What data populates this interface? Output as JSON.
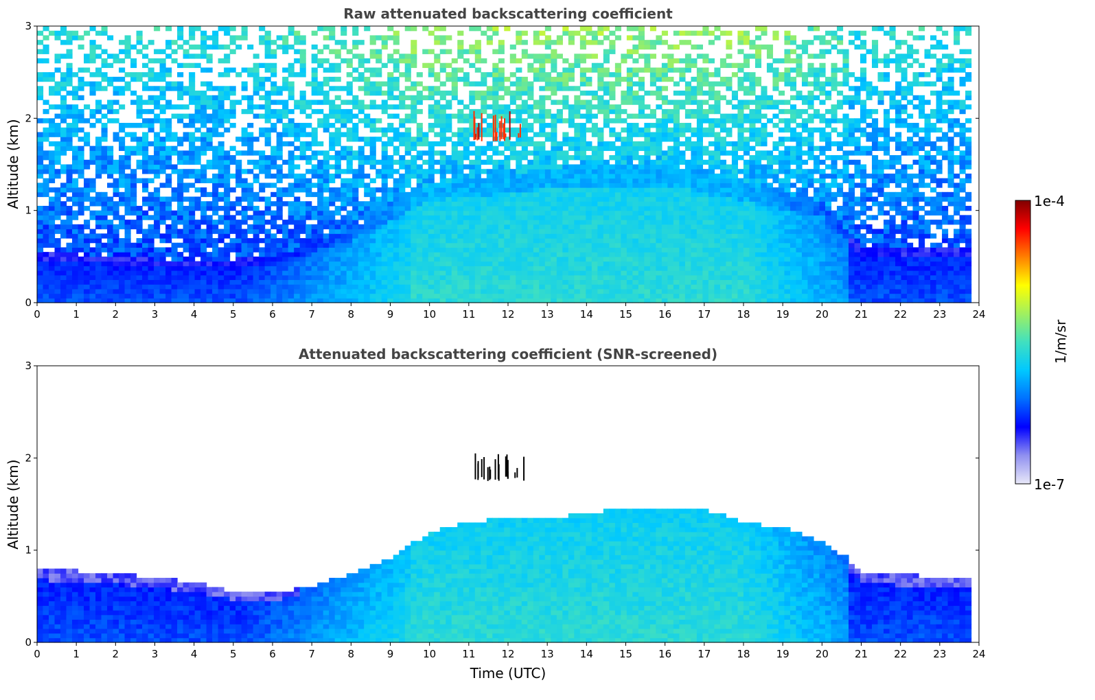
{
  "chart_data": [
    {
      "type": "heatmap",
      "title": "Raw attenuated backscattering coefficient",
      "xlabel": "",
      "ylabel": "Altitude (km)",
      "xlim": [
        0,
        24
      ],
      "ylim": [
        0,
        3
      ],
      "x_ticks": [
        "0",
        "1",
        "2",
        "3",
        "4",
        "5",
        "6",
        "7",
        "8",
        "9",
        "10",
        "11",
        "12",
        "13",
        "14",
        "15",
        "16",
        "17",
        "18",
        "19",
        "20",
        "21",
        "22",
        "23",
        "24"
      ],
      "y_ticks": [
        "0",
        "1",
        "2",
        "3"
      ],
      "scale": "log",
      "data_end_time": 23.8,
      "features": {
        "boundary_layer_top_km": [
          [
            0,
            0.55
          ],
          [
            4,
            0.45
          ],
          [
            6,
            0.5
          ],
          [
            8,
            0.8
          ],
          [
            10,
            1.3
          ],
          [
            12,
            1.4
          ],
          [
            14,
            1.5
          ],
          [
            16,
            1.5
          ],
          [
            18,
            1.3
          ],
          [
            20,
            1.1
          ],
          [
            21,
            0.6
          ],
          [
            24,
            0.6
          ]
        ],
        "cloud_layer": {
          "time_range": [
            11.1,
            12.4
          ],
          "altitude_range_km": [
            1.75,
            2.0
          ],
          "level": "1e-4"
        }
      }
    },
    {
      "type": "heatmap",
      "title": "Attenuated backscattering coefficient (SNR-screened)",
      "xlabel": "Time (UTC)",
      "ylabel": "Altitude (km)",
      "xlim": [
        0,
        24
      ],
      "ylim": [
        0,
        3
      ],
      "x_ticks": [
        "0",
        "1",
        "2",
        "3",
        "4",
        "5",
        "6",
        "7",
        "8",
        "9",
        "10",
        "11",
        "12",
        "13",
        "14",
        "15",
        "16",
        "17",
        "18",
        "19",
        "20",
        "21",
        "22",
        "23",
        "24"
      ],
      "y_ticks": [
        "0",
        "1",
        "2",
        "3"
      ],
      "scale": "log",
      "data_end_time": 23.8,
      "features": {
        "screened_top_km": [
          [
            0,
            0.8
          ],
          [
            2,
            0.75
          ],
          [
            4,
            0.65
          ],
          [
            5,
            0.55
          ],
          [
            6,
            0.55
          ],
          [
            7,
            0.6
          ],
          [
            8,
            0.75
          ],
          [
            9,
            0.9
          ],
          [
            10,
            1.2
          ],
          [
            11,
            1.3
          ],
          [
            12,
            1.35
          ],
          [
            13,
            1.35
          ],
          [
            14,
            1.4
          ],
          [
            15,
            1.45
          ],
          [
            16,
            1.45
          ],
          [
            17,
            1.45
          ],
          [
            18,
            1.3
          ],
          [
            19,
            1.25
          ],
          [
            20,
            1.1
          ],
          [
            20.7,
            0.9
          ],
          [
            21,
            0.75
          ],
          [
            24,
            0.7
          ]
        ],
        "cloud_layer": {
          "time_range": [
            11.1,
            12.4
          ],
          "altitude_range_km": [
            1.75,
            2.0
          ],
          "level": "1e-4"
        }
      }
    }
  ],
  "colorbar": {
    "label": "1/m/sr",
    "min_label": "1e-7",
    "max_label": "1e-4",
    "colormap": "jet-like",
    "stops": [
      "#e8e8f8",
      "#9090f0",
      "#0000ff",
      "#0070ff",
      "#00c8ff",
      "#40e0c0",
      "#a0f060",
      "#ffff00",
      "#ff8000",
      "#ff0000",
      "#800000"
    ]
  }
}
